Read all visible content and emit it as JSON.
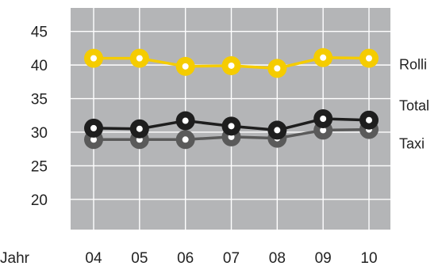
{
  "chart_data": {
    "type": "line",
    "xlabel": "Jahr",
    "ylabel": "",
    "title": "",
    "x": [
      "04",
      "05",
      "06",
      "07",
      "08",
      "09",
      "10"
    ],
    "yticks": [
      20,
      25,
      30,
      35,
      40,
      45
    ],
    "ylim": [
      15.5,
      48.5
    ],
    "grid": true,
    "legend_position": "right (labels beside line ends)",
    "series": [
      {
        "name": "Rolli",
        "values": [
          41.0,
          41.0,
          39.8,
          39.9,
          39.5,
          41.1,
          41.0
        ],
        "color": "#F5CC00"
      },
      {
        "name": "Total",
        "values": [
          30.6,
          30.5,
          31.7,
          30.9,
          30.3,
          32.0,
          31.8
        ],
        "color": "#1E1E1E"
      },
      {
        "name": "Taxi",
        "values": [
          28.9,
          28.9,
          28.9,
          29.3,
          29.1,
          30.3,
          30.4
        ],
        "color": "#5A5A5A"
      }
    ],
    "colors": {
      "plot_background": "#B4B5B7",
      "gridline": "#FFFFFF",
      "marker_center": "#FFFFFF",
      "text": "#222222"
    }
  }
}
